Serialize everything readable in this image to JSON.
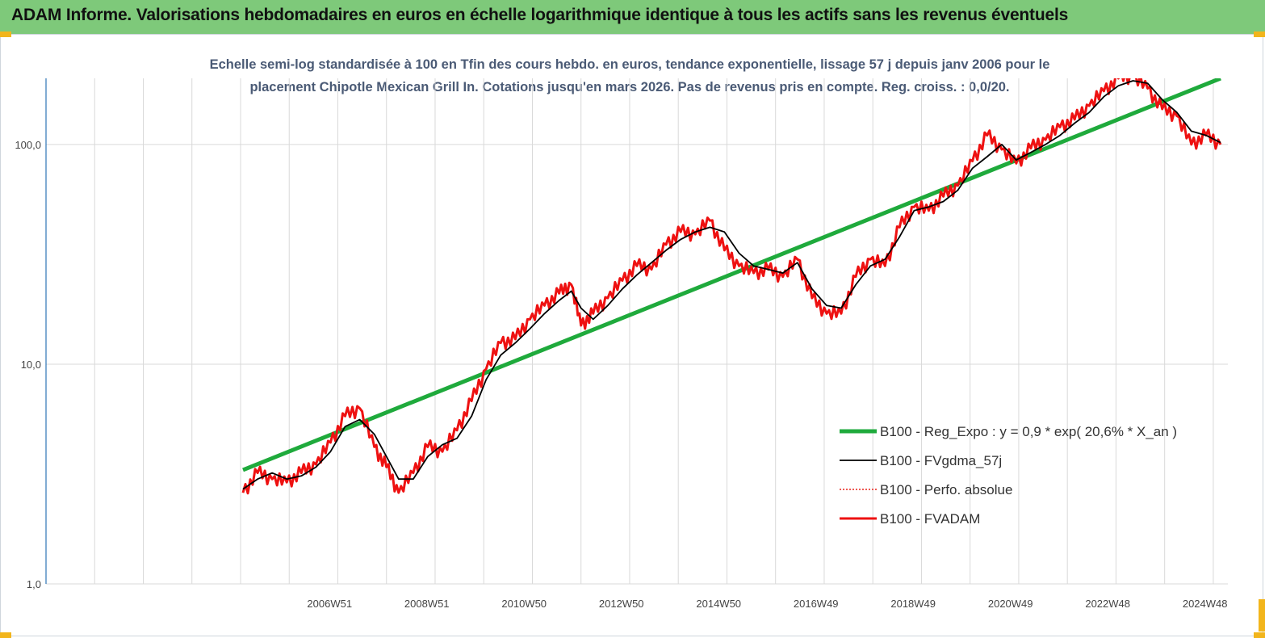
{
  "banner": {
    "title": "ADAM Informe. Valorisations hebdomadaires en euros en échelle logarithmique identique à tous les actifs sans les revenus éventuels"
  },
  "colors": {
    "banner_bg": "#7ec97a",
    "regression": "#1faa3c",
    "smoothed": "#000000",
    "perf_absolue": "#e8231c",
    "fvadam": "#ee1111",
    "grid": "#d9d9d9",
    "axis": "#2e75b6"
  },
  "chart_data": {
    "type": "line",
    "title_line1": "Echelle semi-log standardisée à 100 en Tfin des cours hebdo. en euros, tendance exponentielle, lissage 57 j depuis janv 2006 pour le",
    "title_line2": "placement Chipotle Mexican Grill In. Cotations jusqu'en mars 2026. Pas de revenus pris en compte. Reg. croiss. : 0,0/20.",
    "y_scale": "log",
    "ylim": [
      1,
      200
    ],
    "y_ticks": [
      {
        "value": 1,
        "label": "1,0"
      },
      {
        "value": 10,
        "label": "10,0"
      },
      {
        "value": 100,
        "label": "100,0"
      }
    ],
    "x_range": [
      2001.95,
      2026.25
    ],
    "x_gridlines": [
      2001.95,
      2002.95,
      2003.95,
      2004.95,
      2005.95,
      2006.95,
      2007.95,
      2008.95,
      2009.95,
      2010.95,
      2011.95,
      2012.95,
      2013.95,
      2014.95,
      2015.95,
      2016.95,
      2017.95,
      2018.95,
      2019.95,
      2020.95,
      2021.95,
      2022.95,
      2023.95,
      2024.95,
      2025.95
    ],
    "x_ticks": [
      {
        "x": 2006.95,
        "label": "2006W51"
      },
      {
        "x": 2008.95,
        "label": "2008W51"
      },
      {
        "x": 2010.95,
        "label": "2010W50"
      },
      {
        "x": 2012.95,
        "label": "2012W50"
      },
      {
        "x": 2014.95,
        "label": "2014W50"
      },
      {
        "x": 2016.95,
        "label": "2016W49"
      },
      {
        "x": 2018.95,
        "label": "2018W49"
      },
      {
        "x": 2020.95,
        "label": "2020W49"
      },
      {
        "x": 2022.95,
        "label": "2022W48"
      },
      {
        "x": 2024.95,
        "label": "2024W48"
      }
    ],
    "legend_position": "right",
    "series": [
      {
        "name": "B100 - Reg_Expo : y = 0,9 * exp( 20,6% *  X_an )",
        "style": "regression",
        "x": [
          2006.0,
          2026.1
        ],
        "y": [
          3.3,
          200
        ]
      },
      {
        "name": "B100 - FVgdma_57j",
        "style": "smoothed",
        "x": [
          2006.0,
          2006.3,
          2006.6,
          2006.9,
          2007.2,
          2007.5,
          2007.8,
          2008.1,
          2008.4,
          2008.7,
          2008.95,
          2009.2,
          2009.5,
          2009.8,
          2010.1,
          2010.4,
          2010.7,
          2011.0,
          2011.3,
          2011.6,
          2011.9,
          2012.2,
          2012.5,
          2012.75,
          2012.95,
          2013.2,
          2013.5,
          2013.8,
          2014.1,
          2014.4,
          2014.7,
          2015.0,
          2015.3,
          2015.6,
          2015.9,
          2016.2,
          2016.5,
          2016.8,
          2017.1,
          2017.4,
          2017.7,
          2018.0,
          2018.3,
          2018.6,
          2018.9,
          2019.2,
          2019.5,
          2019.8,
          2020.1,
          2020.4,
          2020.7,
          2021.0,
          2021.3,
          2021.6,
          2021.9,
          2022.2,
          2022.5,
          2022.8,
          2023.1,
          2023.4,
          2023.7,
          2024.0,
          2024.3,
          2024.6,
          2024.9,
          2025.2,
          2025.5,
          2025.8,
          2026.1
        ],
        "y": [
          2.7,
          3.0,
          3.2,
          3.0,
          3.1,
          3.4,
          4.0,
          5.2,
          5.6,
          4.8,
          3.8,
          3.0,
          3.0,
          3.8,
          4.3,
          4.6,
          5.8,
          8.5,
          11.0,
          12.5,
          14.5,
          17.0,
          19.5,
          21.5,
          18.0,
          16.0,
          18.5,
          22.0,
          25.5,
          29.0,
          33.0,
          37.0,
          40.0,
          42.0,
          40.0,
          32.0,
          28.0,
          27.0,
          26.0,
          29.0,
          22.0,
          18.5,
          18.0,
          23.0,
          28.0,
          30.0,
          38.0,
          50.0,
          52.0,
          55.0,
          62.0,
          78.0,
          88.0,
          100.0,
          85.0,
          92.0,
          100.0,
          110.0,
          125.0,
          140.0,
          165.0,
          185.0,
          195.0,
          190.0,
          160.0,
          140.0,
          115.0,
          110.0,
          102.0
        ]
      },
      {
        "name": "B100 - Perfo. absolue",
        "style": "dotted",
        "x": [
          2006.0,
          2006.3,
          2006.6,
          2006.9,
          2007.2,
          2007.5,
          2007.8,
          2008.1,
          2008.4,
          2008.7,
          2008.95,
          2009.2,
          2009.5,
          2009.8,
          2010.1,
          2010.4,
          2010.7,
          2011.0,
          2011.3,
          2011.6,
          2011.9,
          2012.2,
          2012.5,
          2012.75,
          2012.95,
          2013.2,
          2013.5,
          2013.8,
          2014.1,
          2014.4,
          2014.7,
          2015.0,
          2015.3,
          2015.6,
          2015.9,
          2016.2,
          2016.5,
          2016.8,
          2017.1,
          2017.4,
          2017.7,
          2018.0,
          2018.3,
          2018.6,
          2018.9,
          2019.2,
          2019.5,
          2019.8,
          2020.1,
          2020.4,
          2020.7,
          2021.0,
          2021.3,
          2021.6,
          2021.9,
          2022.2,
          2022.5,
          2022.8,
          2023.1,
          2023.4,
          2023.7,
          2024.0,
          2024.3,
          2024.6,
          2024.9,
          2025.2,
          2025.5,
          2025.8,
          2026.1
        ],
        "y": [
          2.6,
          3.2,
          3.0,
          2.9,
          3.2,
          3.5,
          4.4,
          5.8,
          6.3,
          4.2,
          3.4,
          2.6,
          3.2,
          4.2,
          4.0,
          5.0,
          6.8,
          9.5,
          12.5,
          13.0,
          16.0,
          18.5,
          21.0,
          23.0,
          15.0,
          17.0,
          20.0,
          24.0,
          28.0,
          27.0,
          35.0,
          40.0,
          39.0,
          45.0,
          33.0,
          28.0,
          26.0,
          27.0,
          25.0,
          30.0,
          20.0,
          17.0,
          17.0,
          25.0,
          30.0,
          28.0,
          42.0,
          52.0,
          50.0,
          58.0,
          65.0,
          84.0,
          110.0,
          95.0,
          82.0,
          96.0,
          105.0,
          120.0,
          130.0,
          150.0,
          175.0,
          200.0,
          205.0,
          180.0,
          145.0,
          135.0,
          100.0,
          110.0,
          100.0
        ]
      },
      {
        "name": "B100 - FVADAM",
        "style": "main",
        "x": [
          2006.0,
          2006.3,
          2006.6,
          2006.9,
          2007.2,
          2007.5,
          2007.8,
          2008.1,
          2008.4,
          2008.7,
          2008.95,
          2009.2,
          2009.5,
          2009.8,
          2010.1,
          2010.4,
          2010.7,
          2011.0,
          2011.3,
          2011.6,
          2011.9,
          2012.2,
          2012.5,
          2012.75,
          2012.95,
          2013.2,
          2013.5,
          2013.8,
          2014.1,
          2014.4,
          2014.7,
          2015.0,
          2015.3,
          2015.6,
          2015.9,
          2016.2,
          2016.5,
          2016.8,
          2017.1,
          2017.4,
          2017.7,
          2018.0,
          2018.3,
          2018.6,
          2018.9,
          2019.2,
          2019.5,
          2019.8,
          2020.1,
          2020.4,
          2020.7,
          2021.0,
          2021.3,
          2021.6,
          2021.9,
          2022.2,
          2022.5,
          2022.8,
          2023.1,
          2023.4,
          2023.7,
          2024.0,
          2024.3,
          2024.6,
          2024.9,
          2025.2,
          2025.5,
          2025.8,
          2026.1
        ],
        "y": [
          2.6,
          3.2,
          3.0,
          2.9,
          3.2,
          3.5,
          4.4,
          5.8,
          6.3,
          4.2,
          3.4,
          2.6,
          3.2,
          4.2,
          4.0,
          5.0,
          6.8,
          9.5,
          12.5,
          13.0,
          16.0,
          18.5,
          21.0,
          23.0,
          15.0,
          17.0,
          20.0,
          24.0,
          28.0,
          27.0,
          35.0,
          40.0,
          39.0,
          45.0,
          33.0,
          28.0,
          26.0,
          27.0,
          25.0,
          30.0,
          20.0,
          17.0,
          17.0,
          25.0,
          30.0,
          28.0,
          42.0,
          52.0,
          50.0,
          58.0,
          65.0,
          84.0,
          110.0,
          95.0,
          82.0,
          96.0,
          105.0,
          120.0,
          130.0,
          150.0,
          175.0,
          200.0,
          205.0,
          180.0,
          145.0,
          135.0,
          100.0,
          110.0,
          100.0
        ]
      }
    ]
  }
}
